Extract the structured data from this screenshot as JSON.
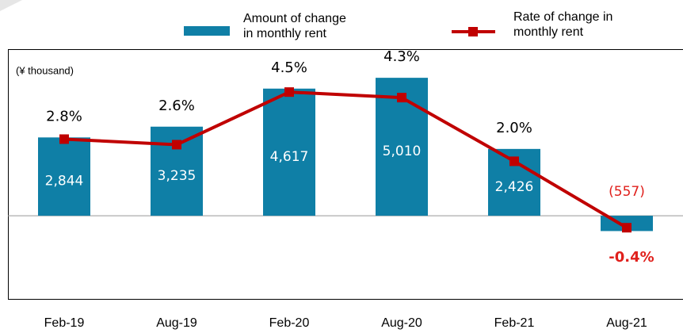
{
  "chart_data": {
    "type": "bar-line",
    "unit_label": "(¥ thousand)",
    "categories": [
      "Feb-19",
      "Aug-19",
      "Feb-20",
      "Aug-20",
      "Feb-21",
      "Aug-21"
    ],
    "series": [
      {
        "name": "Amount of change in monthly rent",
        "type": "bar",
        "color": "#0f7fa6",
        "values": [
          2844,
          3235,
          4617,
          5010,
          2426,
          -557
        ],
        "value_labels": [
          "2,844",
          "3,235",
          "4,617",
          "5,010",
          "2,426",
          "(557)"
        ]
      },
      {
        "name": "Rate of change in monthly rent",
        "type": "line",
        "axis": "y2",
        "color": "#c00000",
        "values": [
          2.8,
          2.6,
          4.5,
          4.3,
          2.0,
          -0.4
        ],
        "value_labels": [
          "2.8%",
          "2.6%",
          "4.5%",
          "4.3%",
          "2.0%",
          "-0.4%"
        ]
      }
    ],
    "ylim": [
      -3050,
      6050
    ],
    "y2lim": [
      -3.0,
      6.05
    ]
  }
}
